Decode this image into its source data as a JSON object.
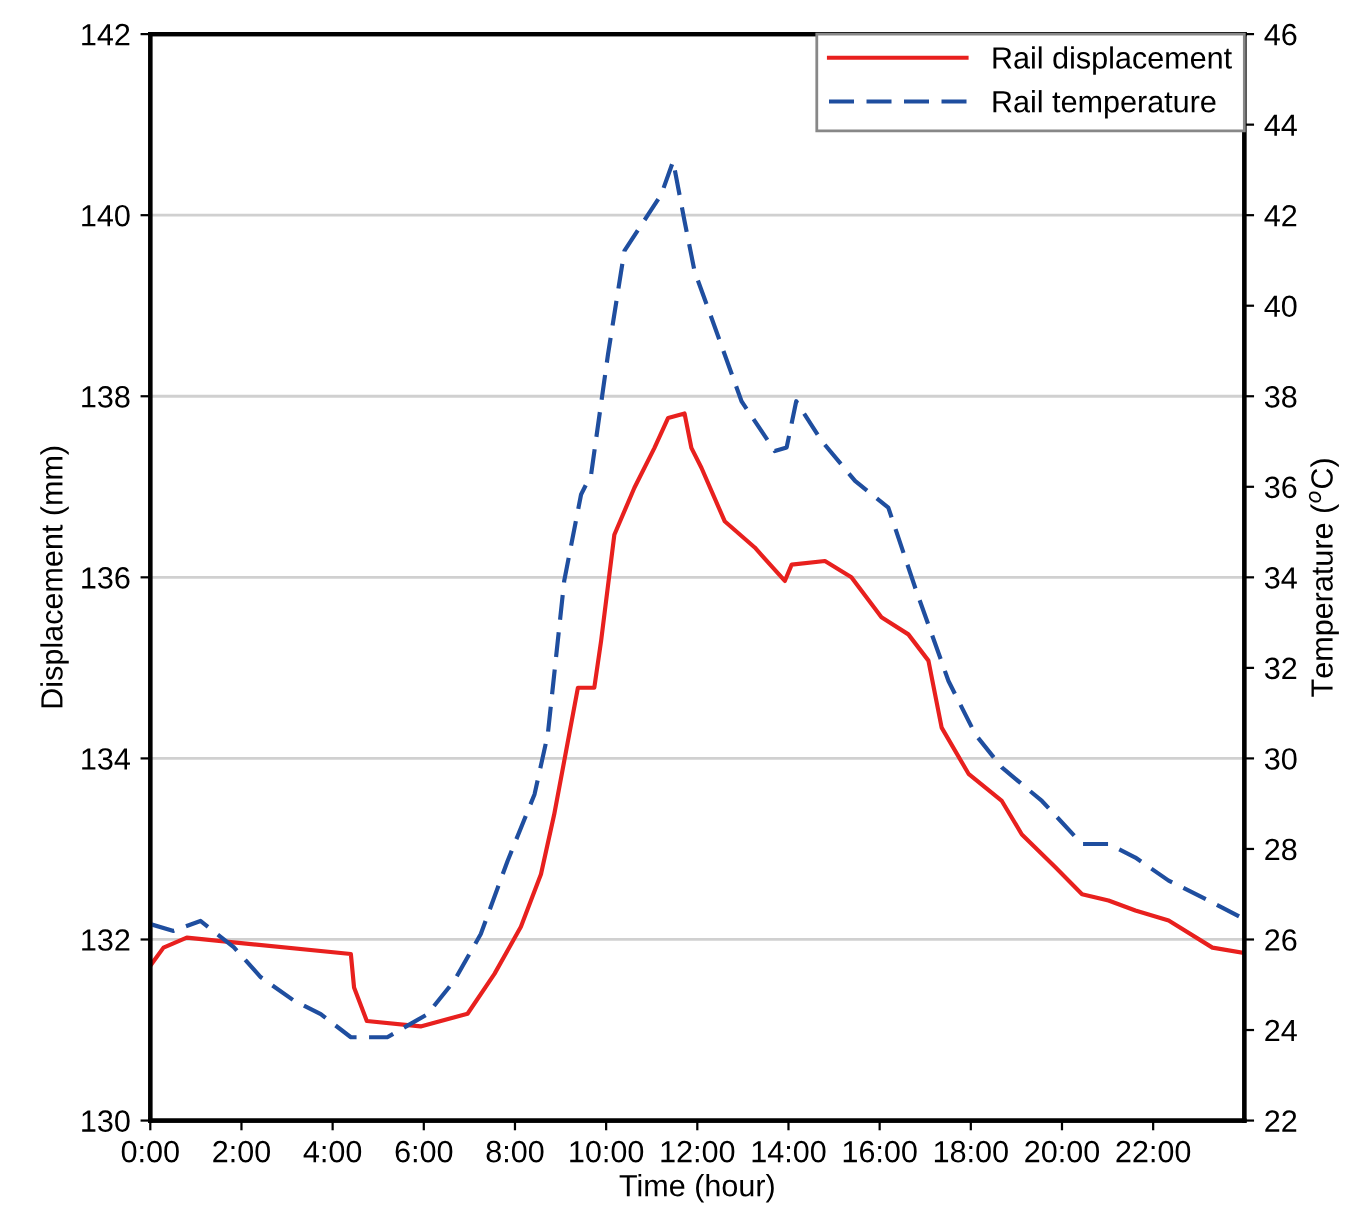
{
  "chart_data": {
    "type": "line",
    "xlabel": "Time (hour)",
    "ylabel": "Displacement (mm)",
    "y2label": "Temperature ($^{o}$C)",
    "xlim": [
      0,
      24
    ],
    "xticks": [
      {
        "value": 0,
        "label": "0:00"
      },
      {
        "value": 2,
        "label": "2:00"
      },
      {
        "value": 4,
        "label": "4:00"
      },
      {
        "value": 6,
        "label": "6:00"
      },
      {
        "value": 8,
        "label": "8:00"
      },
      {
        "value": 10,
        "label": "10:00"
      },
      {
        "value": 12,
        "label": "12:00"
      },
      {
        "value": 14,
        "label": "14:00"
      },
      {
        "value": 16,
        "label": "16:00"
      },
      {
        "value": 18,
        "label": "18:00"
      },
      {
        "value": 20,
        "label": "20:00"
      },
      {
        "value": 22,
        "label": "22:00"
      }
    ],
    "ylim": [
      130,
      142
    ],
    "yticks": [
      130,
      132,
      134,
      136,
      138,
      140,
      142
    ],
    "y2lim": [
      22,
      46
    ],
    "y2ticks": [
      22,
      24,
      26,
      28,
      30,
      32,
      34,
      36,
      38,
      40,
      42,
      44,
      46
    ],
    "grid": "y",
    "legend": "top right",
    "series": [
      {
        "name": "Rail displacement",
        "color": "#e8201e",
        "line_style": "solid",
        "x": [
          0,
          0.29,
          0.8,
          4.4,
          4.47,
          4.75,
          5.93,
          6.96,
          7.55,
          8.13,
          8.57,
          8.86,
          9.08,
          9.38,
          9.74,
          9.89,
          10.18,
          10.62,
          11.06,
          11.36,
          11.72,
          11.87,
          12.09,
          12.6,
          13.26,
          13.92,
          14.07,
          14.8,
          15.38,
          16.04,
          16.63,
          17.07,
          17.36,
          17.95,
          18.68,
          19.12,
          19.85,
          20.44,
          21.02,
          21.61,
          22.34,
          23.3,
          24
        ],
        "values": [
          131.71,
          131.91,
          132.02,
          131.84,
          131.47,
          131.1,
          131.04,
          131.18,
          131.62,
          132.14,
          132.72,
          133.38,
          133.97,
          134.78,
          134.78,
          135.3,
          136.47,
          136.99,
          137.43,
          137.76,
          137.81,
          137.43,
          137.21,
          136.62,
          136.33,
          135.96,
          136.14,
          136.18,
          136.0,
          135.56,
          135.37,
          135.08,
          134.34,
          133.83,
          133.53,
          133.16,
          132.8,
          132.5,
          132.43,
          132.32,
          132.21,
          131.91,
          131.85
        ]
      },
      {
        "name": "Rail temperature",
        "color": "#1f4e9f",
        "line_style": "dashed",
        "axis": "y2",
        "x": [
          0,
          0.51,
          1.1,
          1.83,
          2.42,
          3.15,
          3.74,
          4.4,
          5.2,
          6.08,
          6.67,
          7.25,
          7.84,
          8.43,
          8.72,
          9.08,
          9.45,
          9.67,
          10.04,
          10.4,
          10.92,
          11.21,
          11.47,
          11.72,
          11.94,
          12.23,
          12.97,
          13.7,
          13.96,
          14.17,
          14.73,
          15.46,
          16.19,
          16.78,
          17.51,
          18.1,
          18.68,
          19.56,
          20.44,
          21.02,
          21.61,
          22.34,
          23.22,
          24
        ],
        "values": [
          26.34,
          26.19,
          26.41,
          25.83,
          25.17,
          24.65,
          24.35,
          23.84,
          23.84,
          24.35,
          25.09,
          26.12,
          27.74,
          29.21,
          30.53,
          33.92,
          35.83,
          36.27,
          38.92,
          41.21,
          42.01,
          42.46,
          43.19,
          41.87,
          40.76,
          39.96,
          37.89,
          36.79,
          36.87,
          37.89,
          37.01,
          36.13,
          35.54,
          33.77,
          31.71,
          30.53,
          29.8,
          29.06,
          28.11,
          28.11,
          27.81,
          27.3,
          26.86,
          26.45
        ]
      }
    ]
  }
}
